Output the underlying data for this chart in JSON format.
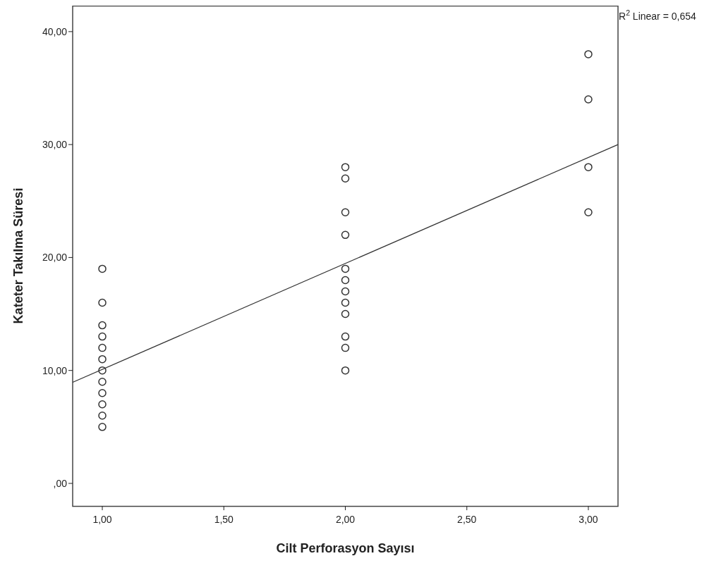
{
  "chart_data": {
    "type": "scatter",
    "xlabel": "Cilt Perforasyon Sayısı",
    "ylabel": "Kateter Takılma Süresi",
    "annotations": [
      "R$^{2}$ Linear = 0,654"
    ],
    "xlim": [
      0.878,
      3.122
    ],
    "ylim": [
      -2.0,
      42.3
    ],
    "xticks": [
      {
        "value": 1,
        "label": "1,00"
      },
      {
        "value": 1.5,
        "label": "1,50"
      },
      {
        "value": 2,
        "label": "2,00"
      },
      {
        "value": 2.5,
        "label": "2,50"
      },
      {
        "value": 3,
        "label": "3,00"
      }
    ],
    "yticks": [
      {
        "value": 0,
        "label": ",00"
      },
      {
        "value": 10,
        "label": "10,00"
      },
      {
        "value": 20,
        "label": "20,00"
      },
      {
        "value": 30,
        "label": "30,00"
      },
      {
        "value": 40,
        "label": "40,00"
      }
    ],
    "grid": false,
    "series": [
      {
        "marker": "circle",
        "color": "#333333",
        "x": [
          1,
          1,
          1,
          1,
          1,
          1,
          1,
          1,
          1,
          1,
          1,
          1,
          2,
          2,
          2,
          2,
          2,
          2,
          2,
          2,
          2,
          2,
          2,
          2,
          3,
          3,
          3,
          3
        ],
        "values": [
          19,
          16,
          14,
          13,
          12,
          11,
          10,
          9,
          8,
          7,
          6,
          5,
          28,
          27,
          24,
          22,
          19,
          18,
          17,
          16,
          15,
          13,
          12,
          10,
          38,
          34,
          28,
          24
        ]
      },
      {
        "type": "line",
        "marker": "none",
        "color": "#333333",
        "line_style": "solid",
        "x": [
          0.878,
          3.122
        ],
        "values": [
          8.95,
          30.0
        ]
      }
    ]
  }
}
